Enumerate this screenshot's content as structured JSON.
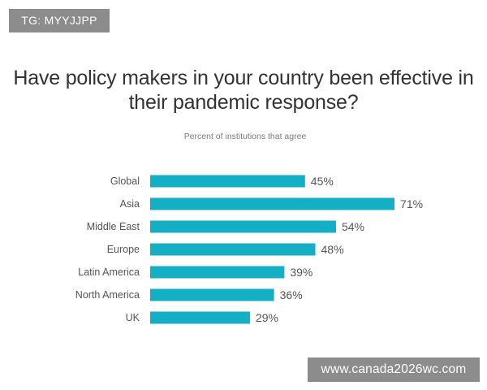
{
  "tag": "TG: MYYJJPP",
  "watermark": "www.canada2026wc.com",
  "colors": {
    "bar": "#14afc5",
    "label": "#555555",
    "value": "#555555"
  },
  "chart_data": {
    "type": "bar",
    "orientation": "horizontal",
    "title_lines": [
      "Have policy makers in your country been effective in",
      "their pandemic response?"
    ],
    "subtitle": "Percent of institutions that agree",
    "categories": [
      "Global",
      "Asia",
      "Middle East",
      "Europe",
      "Latin America",
      "North America",
      "UK"
    ],
    "values": [
      45,
      71,
      54,
      48,
      39,
      36,
      29
    ],
    "value_labels": [
      "45%",
      "71%",
      "54%",
      "48%",
      "39%",
      "36%",
      "29%"
    ],
    "unit": "%",
    "xlim": [
      0,
      100
    ],
    "grid": false,
    "legend": "none"
  }
}
